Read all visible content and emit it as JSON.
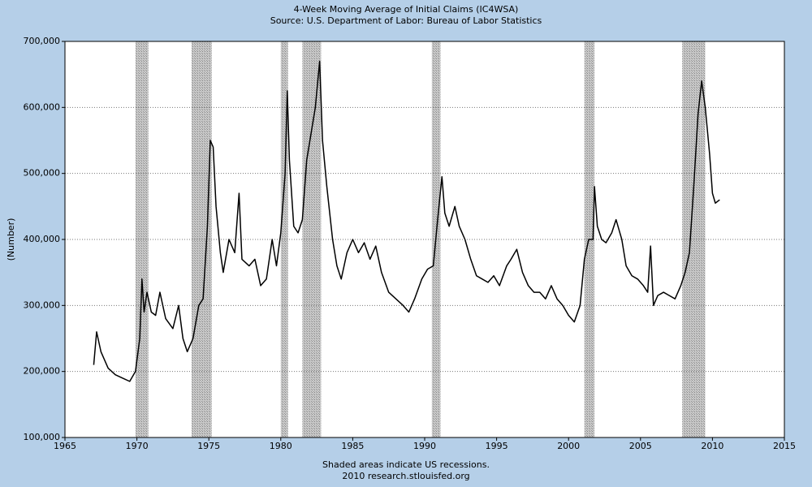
{
  "chart_data": {
    "type": "line",
    "title": "4-Week Moving Average of Initial Claims (IC4WSA)",
    "subtitle": "Source: U.S. Department of Labor: Bureau of Labor Statistics",
    "y_label": "(Number)",
    "footnote": "Shaded areas indicate US recessions.",
    "credit": "2010 research.stlouisfed.org",
    "color": "#000000",
    "grid": true,
    "xlim": [
      1965,
      2015
    ],
    "xticks": [
      1965,
      1970,
      1975,
      1980,
      1985,
      1990,
      1995,
      2000,
      2005,
      2010,
      2015
    ],
    "ylim": [
      100000,
      700000
    ],
    "yticks": [
      {
        "value": 100000,
        "label": "100,000"
      },
      {
        "value": 200000,
        "label": "200,000"
      },
      {
        "value": 300000,
        "label": "300,000"
      },
      {
        "value": 400000,
        "label": "400,000"
      },
      {
        "value": 500000,
        "label": "500,000"
      },
      {
        "value": 600000,
        "label": "600,000"
      },
      {
        "value": 700000,
        "label": "700,000"
      }
    ],
    "recessions": [
      {
        "start": 1969.9,
        "end": 1970.8
      },
      {
        "start": 1973.8,
        "end": 1975.2
      },
      {
        "start": 1980.0,
        "end": 1980.5
      },
      {
        "start": 1981.5,
        "end": 1982.8
      },
      {
        "start": 1990.5,
        "end": 1991.1
      },
      {
        "start": 2001.1,
        "end": 2001.8
      },
      {
        "start": 2007.9,
        "end": 2009.5
      }
    ],
    "x": [
      1967.0,
      1967.2,
      1967.5,
      1968.0,
      1968.5,
      1969.0,
      1969.5,
      1969.9,
      1970.2,
      1970.35,
      1970.5,
      1970.7,
      1971.0,
      1971.3,
      1971.6,
      1972.0,
      1972.5,
      1972.9,
      1973.2,
      1973.5,
      1973.9,
      1974.3,
      1974.6,
      1974.9,
      1975.1,
      1975.3,
      1975.5,
      1975.8,
      1976.0,
      1976.4,
      1976.8,
      1977.1,
      1977.3,
      1977.8,
      1978.2,
      1978.6,
      1979.0,
      1979.4,
      1979.7,
      1980.0,
      1980.3,
      1980.45,
      1980.6,
      1980.9,
      1981.2,
      1981.5,
      1981.8,
      1982.1,
      1982.4,
      1982.7,
      1982.9,
      1983.2,
      1983.6,
      1983.9,
      1984.2,
      1984.6,
      1985.0,
      1985.4,
      1985.8,
      1986.2,
      1986.6,
      1987.0,
      1987.5,
      1988.0,
      1988.5,
      1988.9,
      1989.3,
      1989.8,
      1990.2,
      1990.6,
      1990.9,
      1991.2,
      1991.4,
      1991.7,
      1992.1,
      1992.4,
      1992.8,
      1993.2,
      1993.6,
      1994.0,
      1994.4,
      1994.8,
      1995.2,
      1995.7,
      1996.0,
      1996.4,
      1996.8,
      1997.2,
      1997.6,
      1998.0,
      1998.4,
      1998.8,
      1999.2,
      1999.6,
      2000.0,
      2000.4,
      2000.8,
      2001.1,
      2001.4,
      2001.7,
      2001.8,
      2002.0,
      2002.3,
      2002.6,
      2003.0,
      2003.3,
      2003.7,
      2004.0,
      2004.4,
      2004.8,
      2005.2,
      2005.5,
      2005.7,
      2005.9,
      2006.2,
      2006.6,
      2007.0,
      2007.4,
      2007.8,
      2008.1,
      2008.4,
      2008.7,
      2009.0,
      2009.25,
      2009.5,
      2009.8,
      2010.0,
      2010.2,
      2010.5
    ],
    "values": [
      210000,
      260000,
      230000,
      205000,
      195000,
      190000,
      185000,
      200000,
      250000,
      340000,
      290000,
      320000,
      290000,
      285000,
      320000,
      280000,
      265000,
      300000,
      250000,
      230000,
      250000,
      300000,
      310000,
      420000,
      550000,
      540000,
      450000,
      380000,
      350000,
      400000,
      380000,
      470000,
      370000,
      360000,
      370000,
      330000,
      340000,
      400000,
      360000,
      410000,
      500000,
      625000,
      520000,
      420000,
      410000,
      430000,
      520000,
      560000,
      600000,
      670000,
      550000,
      480000,
      400000,
      360000,
      340000,
      380000,
      400000,
      380000,
      395000,
      370000,
      390000,
      350000,
      320000,
      310000,
      300000,
      290000,
      310000,
      340000,
      355000,
      360000,
      430000,
      495000,
      440000,
      420000,
      450000,
      420000,
      400000,
      370000,
      345000,
      340000,
      335000,
      345000,
      330000,
      360000,
      370000,
      385000,
      350000,
      330000,
      320000,
      320000,
      310000,
      330000,
      310000,
      300000,
      285000,
      275000,
      300000,
      370000,
      400000,
      400000,
      480000,
      420000,
      400000,
      395000,
      410000,
      430000,
      400000,
      360000,
      345000,
      340000,
      330000,
      320000,
      390000,
      300000,
      315000,
      320000,
      315000,
      310000,
      330000,
      350000,
      380000,
      480000,
      590000,
      640000,
      600000,
      530000,
      470000,
      455000,
      460000
    ]
  }
}
